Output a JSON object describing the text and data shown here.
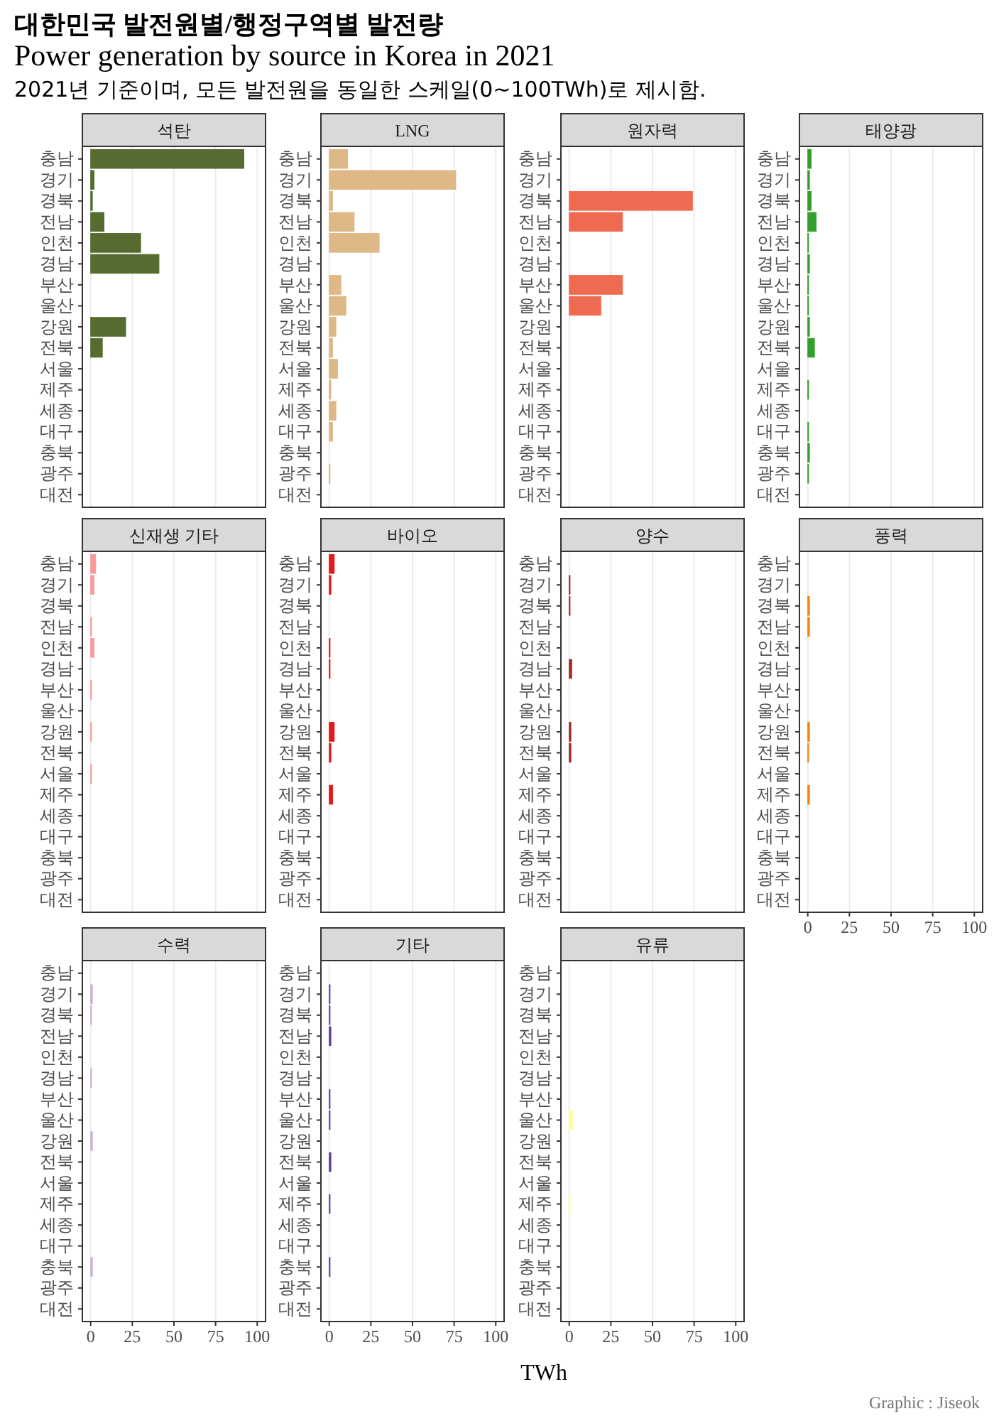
{
  "chart_data": [
    {
      "type": "other",
      "title": "대한민국 발전원별/행정구역별 발전량",
      "subtitle": "Power generation by source in Korea in 2021",
      "annotations": [
        "2021년 기준이며, 모든 발전원을 동일한 스케일(0~100TWh)로 제시함.",
        "TWh",
        "Graphic : Jiseok"
      ]
    },
    {
      "type": "bar",
      "orientation": "horizontal",
      "title": "석탄",
      "categories": [
        "충남",
        "경기",
        "경북",
        "전남",
        "인천",
        "경남",
        "부산",
        "울산",
        "강원",
        "전북",
        "서울",
        "제주",
        "세종",
        "대구",
        "충북",
        "광주",
        "대전"
      ],
      "values": [
        92,
        2,
        1,
        8,
        30,
        41,
        null,
        null,
        21,
        7,
        null,
        null,
        null,
        null,
        null,
        null,
        null
      ],
      "color": "#556b2f",
      "xlim": [
        -5,
        105
      ],
      "xticks": [
        0,
        25,
        50,
        75,
        100
      ],
      "grid": "x",
      "tick_labels": "y"
    },
    {
      "type": "bar",
      "orientation": "horizontal",
      "title": "LNG",
      "categories": [
        "충남",
        "경기",
        "경북",
        "전남",
        "인천",
        "경남",
        "부산",
        "울산",
        "강원",
        "전북",
        "서울",
        "제주",
        "세종",
        "대구",
        "충북",
        "광주",
        "대전"
      ],
      "values": [
        11,
        76,
        2,
        15,
        30,
        null,
        7,
        10,
        4,
        2,
        5,
        1,
        4,
        2,
        null,
        0.5,
        null
      ],
      "color": "#deb887",
      "xlim": [
        -5,
        105
      ],
      "xticks": [
        0,
        25,
        50,
        75,
        100
      ],
      "grid": "x",
      "tick_labels": "y"
    },
    {
      "type": "bar",
      "orientation": "horizontal",
      "title": "원자력",
      "categories": [
        "충남",
        "경기",
        "경북",
        "전남",
        "인천",
        "경남",
        "부산",
        "울산",
        "강원",
        "전북",
        "서울",
        "제주",
        "세종",
        "대구",
        "충북",
        "광주",
        "대전"
      ],
      "values": [
        null,
        null,
        74,
        32,
        null,
        null,
        32,
        19,
        null,
        null,
        null,
        null,
        null,
        null,
        null,
        null,
        null
      ],
      "color": "#ee6a50",
      "xlim": [
        -5,
        105
      ],
      "xticks": [
        0,
        25,
        50,
        75,
        100
      ],
      "grid": "x",
      "tick_labels": "y"
    },
    {
      "type": "bar",
      "orientation": "horizontal",
      "title": "태양광",
      "categories": [
        "충남",
        "경기",
        "경북",
        "전남",
        "인천",
        "경남",
        "부산",
        "울산",
        "강원",
        "전북",
        "서울",
        "제주",
        "세종",
        "대구",
        "충북",
        "광주",
        "대전"
      ],
      "values": [
        2,
        1,
        2,
        5,
        0.5,
        1,
        0.5,
        0.5,
        1,
        4,
        null,
        0.5,
        null,
        0.5,
        1,
        0.5,
        null
      ],
      "color": "#33a02c",
      "xlim": [
        -5,
        105
      ],
      "xticks": [
        0,
        25,
        50,
        75,
        100
      ],
      "grid": "x",
      "tick_labels": "y"
    },
    {
      "type": "bar",
      "orientation": "horizontal",
      "title": "신재생 기타",
      "categories": [
        "충남",
        "경기",
        "경북",
        "전남",
        "인천",
        "경남",
        "부산",
        "울산",
        "강원",
        "전북",
        "서울",
        "제주",
        "세종",
        "대구",
        "충북",
        "광주",
        "대전"
      ],
      "values": [
        3,
        2,
        null,
        0.5,
        2,
        null,
        0.5,
        null,
        0.5,
        null,
        0.5,
        null,
        null,
        null,
        null,
        null,
        null
      ],
      "color": "#fb9a99",
      "xlim": [
        -5,
        105
      ],
      "xticks": [
        0,
        25,
        50,
        75,
        100
      ],
      "grid": "x",
      "tick_labels": "y"
    },
    {
      "type": "bar",
      "orientation": "horizontal",
      "title": "바이오",
      "categories": [
        "충남",
        "경기",
        "경북",
        "전남",
        "인천",
        "경남",
        "부산",
        "울산",
        "강원",
        "전북",
        "서울",
        "제주",
        "세종",
        "대구",
        "충북",
        "광주",
        "대전"
      ],
      "values": [
        3,
        1,
        null,
        null,
        0.5,
        0.5,
        null,
        null,
        3,
        1,
        null,
        2,
        null,
        null,
        null,
        null,
        null
      ],
      "color": "#e31a1c",
      "xlim": [
        -5,
        105
      ],
      "xticks": [
        0,
        25,
        50,
        75,
        100
      ],
      "grid": "x",
      "tick_labels": "y"
    },
    {
      "type": "bar",
      "orientation": "horizontal",
      "title": "양수",
      "categories": [
        "충남",
        "경기",
        "경북",
        "전남",
        "인천",
        "경남",
        "부산",
        "울산",
        "강원",
        "전북",
        "서울",
        "제주",
        "세종",
        "대구",
        "충북",
        "광주",
        "대전"
      ],
      "values": [
        null,
        0.5,
        0.5,
        null,
        null,
        1.5,
        null,
        null,
        1,
        1,
        null,
        null,
        null,
        null,
        null,
        null,
        null
      ],
      "color": "#a52a2a",
      "xlim": [
        -5,
        105
      ],
      "xticks": [
        0,
        25,
        50,
        75,
        100
      ],
      "grid": "x",
      "tick_labels": "y"
    },
    {
      "type": "bar",
      "orientation": "horizontal",
      "title": "풍력",
      "categories": [
        "충남",
        "경기",
        "경북",
        "전남",
        "인천",
        "경남",
        "부산",
        "울산",
        "강원",
        "전북",
        "서울",
        "제주",
        "세종",
        "대구",
        "충북",
        "광주",
        "대전"
      ],
      "values": [
        null,
        null,
        1,
        1,
        null,
        null,
        null,
        null,
        1,
        0.5,
        null,
        1,
        null,
        null,
        null,
        null,
        null
      ],
      "color": "#ff7f00",
      "xlim": [
        -5,
        105
      ],
      "xticks": [
        0,
        25,
        50,
        75,
        100
      ],
      "grid": "x"
    },
    {
      "type": "bar",
      "orientation": "horizontal",
      "title": "수력",
      "categories": [
        "충남",
        "경기",
        "경북",
        "전남",
        "인천",
        "경남",
        "부산",
        "울산",
        "강원",
        "전북",
        "서울",
        "제주",
        "세종",
        "대구",
        "충북",
        "광주",
        "대전"
      ],
      "values": [
        null,
        1,
        0.5,
        null,
        null,
        0.5,
        null,
        null,
        1,
        null,
        null,
        null,
        null,
        null,
        1,
        null,
        null
      ],
      "color": "#cab2d6",
      "xlim": [
        -5,
        105
      ],
      "xticks": [
        0,
        25,
        50,
        75,
        100
      ],
      "grid": "x"
    },
    {
      "type": "bar",
      "orientation": "horizontal",
      "title": "기타",
      "categories": [
        "충남",
        "경기",
        "경북",
        "전남",
        "인천",
        "경남",
        "부산",
        "울산",
        "강원",
        "전북",
        "서울",
        "제주",
        "세종",
        "대구",
        "충북",
        "광주",
        "대전"
      ],
      "values": [
        null,
        0.5,
        0.5,
        1,
        null,
        null,
        0.5,
        0.5,
        null,
        1,
        null,
        0.5,
        null,
        null,
        0.5,
        null,
        null
      ],
      "color": "#6a3d9a",
      "xlim": [
        -5,
        105
      ],
      "xticks": [
        0,
        25,
        50,
        75,
        100
      ],
      "grid": "x"
    },
    {
      "type": "bar",
      "orientation": "horizontal",
      "title": "유류",
      "categories": [
        "충남",
        "경기",
        "경북",
        "전남",
        "인천",
        "경남",
        "부산",
        "울산",
        "강원",
        "전북",
        "서울",
        "제주",
        "세종",
        "대구",
        "충북",
        "광주",
        "대전"
      ],
      "values": [
        null,
        null,
        null,
        null,
        null,
        null,
        null,
        2,
        null,
        null,
        null,
        0.5,
        null,
        null,
        null,
        null,
        null
      ],
      "color": "#ffff99",
      "xlim": [
        -5,
        105
      ],
      "xticks": [
        0,
        25,
        50,
        75,
        100
      ],
      "grid": "x"
    }
  ]
}
